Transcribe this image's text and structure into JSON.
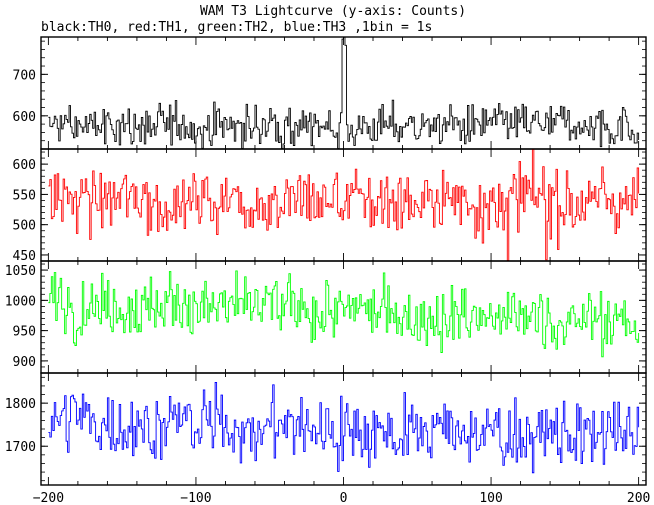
{
  "chart_data": {
    "type": "line",
    "title": "WAM T3 Lightcurve (y-axis: Counts)",
    "subtitle": "black:TH0, red:TH1, green:TH2, blue:TH3 ,1bin = 1s",
    "xlim": [
      -205,
      205
    ],
    "xticks": [
      -200,
      -100,
      0,
      100,
      200
    ],
    "grid": false,
    "legend": "none",
    "panels": [
      {
        "color": "#000000",
        "ylim": [
          520,
          790
        ],
        "yticks": [
          600,
          700
        ],
        "baseline": 575,
        "noise": 24,
        "outliers": [
          {
            "x": 0,
            "y": 790
          },
          {
            "x": -1,
            "y": 785
          },
          {
            "x": 1,
            "y": 770
          }
        ]
      },
      {
        "color": "#ff0000",
        "ylim": [
          440,
          625
        ],
        "yticks": [
          450,
          500,
          550,
          600
        ],
        "baseline": 540,
        "noise": 26,
        "outliers": [
          {
            "x": 111,
            "y": 440
          },
          {
            "x": 137,
            "y": 442
          }
        ]
      },
      {
        "color": "#00ff00",
        "ylim": [
          880,
          1065
        ],
        "yticks": [
          900,
          950,
          1000,
          1050
        ],
        "baseline": 962,
        "trend_start": 1000,
        "noise": 24,
        "outliers": []
      },
      {
        "color": "#0000ff",
        "ylim": [
          1610,
          1870
        ],
        "yticks": [
          1700,
          1800
        ],
        "baseline": 1720,
        "trend_start": 1760,
        "noise": 38,
        "outliers": []
      }
    ]
  }
}
